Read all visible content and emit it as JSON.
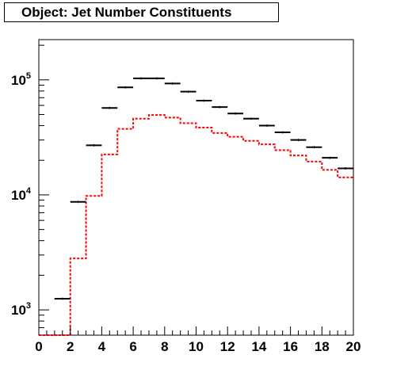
{
  "chart_data": {
    "type": "histogram",
    "title": "Object: Jet Number Constituents",
    "xlim": [
      0,
      20
    ],
    "ylim_log10": [
      2.78,
      5.35
    ],
    "y_scale": "log",
    "bin_width": 1,
    "x_ticks": [
      "0",
      "2",
      "4",
      "6",
      "8",
      "10",
      "12",
      "14",
      "16",
      "18",
      "20"
    ],
    "y_ticks": [
      {
        "base": "10",
        "exp": "3",
        "value": 1000
      },
      {
        "base": "10",
        "exp": "4",
        "value": 10000
      },
      {
        "base": "10",
        "exp": "5",
        "value": 100000
      }
    ],
    "series": [
      {
        "style": "points-with-xerror",
        "color": "#000000",
        "bin_centers": [
          1.5,
          2.5,
          3.5,
          4.5,
          5.5,
          6.5,
          7.5,
          8.5,
          9.5,
          10.5,
          11.5,
          12.5,
          13.5,
          14.5,
          15.5,
          16.5,
          17.5,
          18.5,
          19.5
        ],
        "values": [
          1250,
          8700,
          27000,
          57000,
          86000,
          103000,
          103000,
          93000,
          79000,
          66000,
          58000,
          51000,
          46000,
          40000,
          35000,
          30000,
          26000,
          21000,
          17000
        ]
      },
      {
        "style": "dashed-step",
        "color": "#ff0000",
        "bin_edges": [
          0,
          1,
          2,
          3,
          4,
          5,
          6,
          7,
          8,
          9,
          10,
          11,
          12,
          13,
          14,
          15,
          16,
          17,
          18,
          19,
          20
        ],
        "values": [
          600,
          600,
          2800,
          9800,
          22500,
          37500,
          46000,
          49500,
          47000,
          42000,
          38500,
          34500,
          32000,
          29500,
          27500,
          24500,
          22000,
          19500,
          16500,
          14200
        ]
      }
    ]
  },
  "colors": {
    "background": "#ffffff",
    "axis": "#000000",
    "primary_series": "#000000",
    "secondary_series": "#ff0000"
  }
}
